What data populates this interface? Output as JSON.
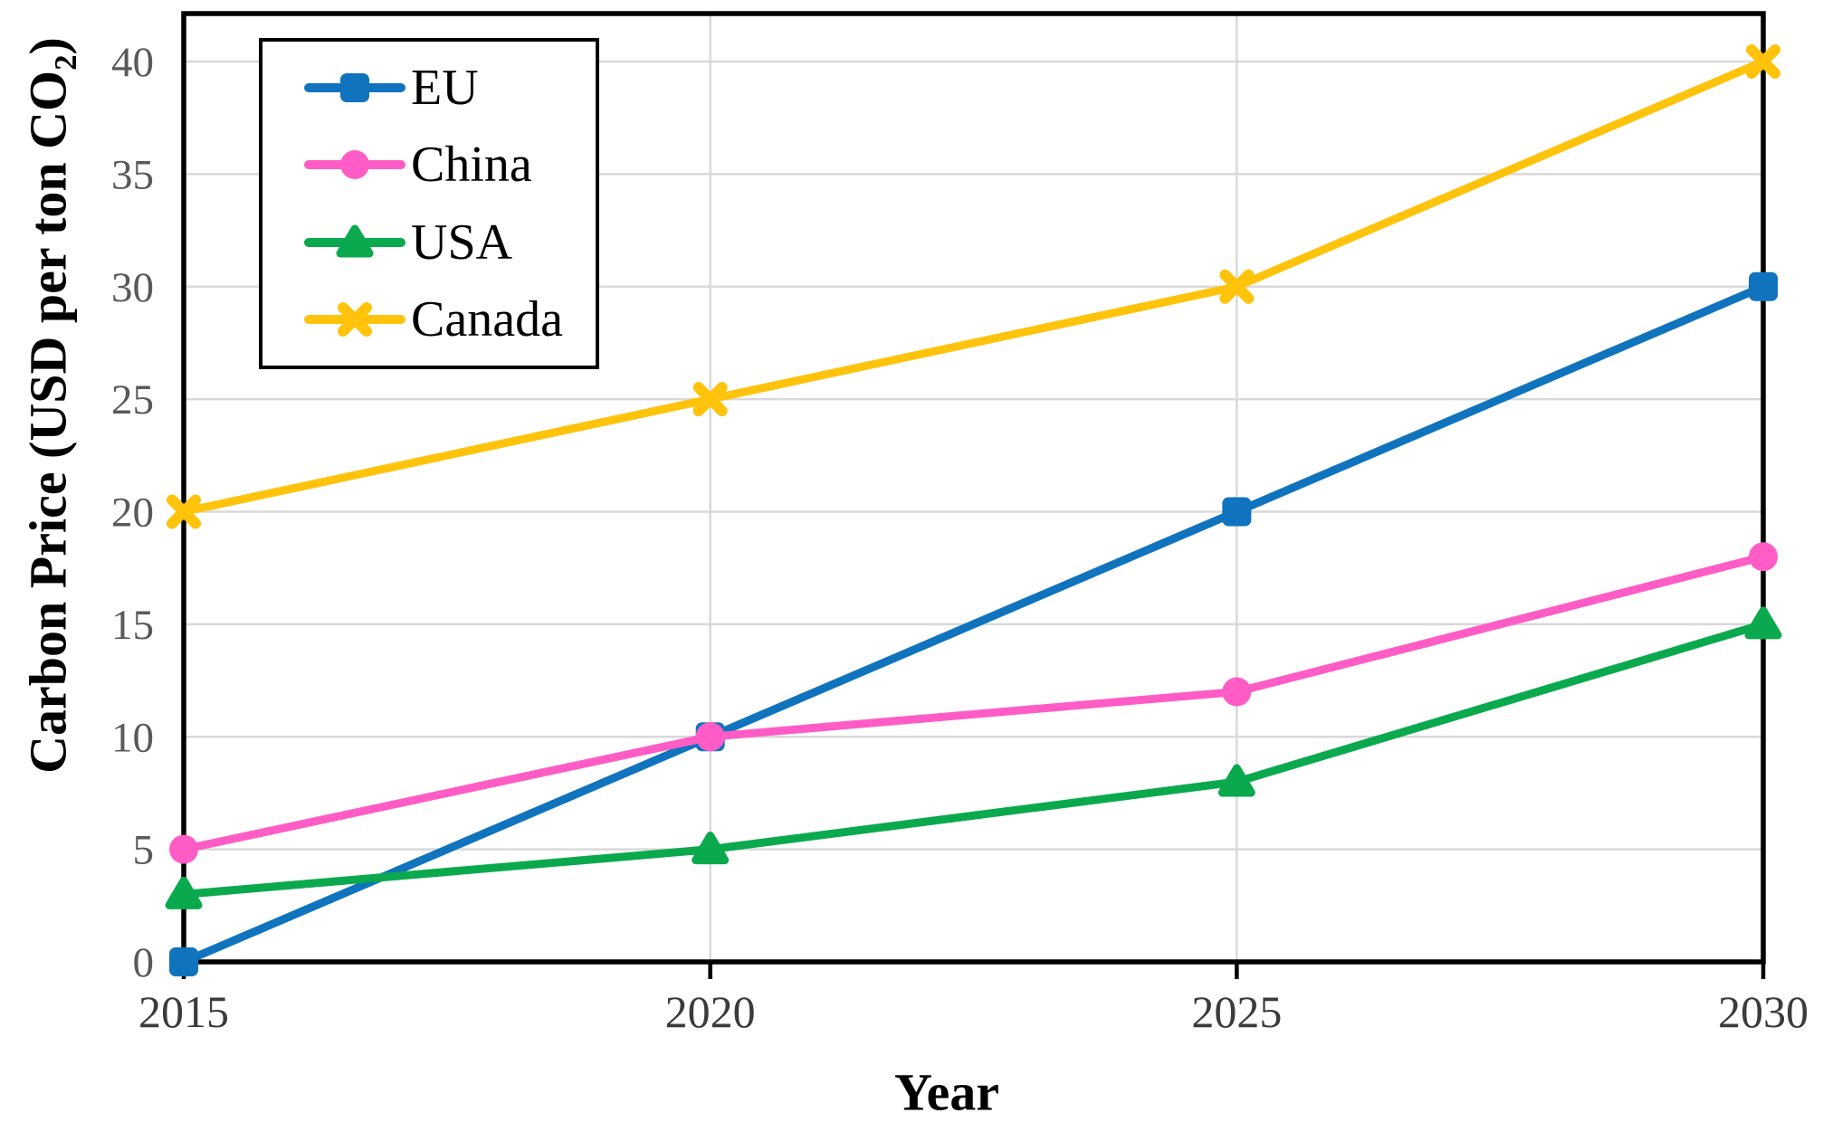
{
  "chart_data": {
    "type": "line",
    "title": "",
    "xlabel": "Year",
    "ylabel": "Carbon Price (USD per ton CO₂)",
    "x_labels": [
      "2015",
      "2020",
      "2025",
      "2030"
    ],
    "y_ticks": [
      0,
      5,
      10,
      15,
      20,
      25,
      30,
      35,
      40
    ],
    "ylim": [
      0,
      40
    ],
    "grid": "horizontal and vertical light-gray gridlines",
    "legend_position": "top-left inside plot, boxed",
    "series": [
      {
        "name": "EU",
        "marker": "square",
        "color": "#1073BE",
        "values": [
          0,
          10,
          20,
          30
        ]
      },
      {
        "name": "China",
        "marker": "circle",
        "color": "#FF5CC6",
        "values": [
          5,
          10,
          12,
          18
        ]
      },
      {
        "name": "USA",
        "marker": "triangle",
        "color": "#0BA94E",
        "values": [
          3,
          5,
          8,
          15
        ]
      },
      {
        "name": "Canada",
        "marker": "x",
        "color": "#FFC30B",
        "values": [
          20,
          25,
          30,
          40
        ]
      }
    ]
  },
  "style": {
    "grid_color": "#D9D9D9",
    "axis_color": "#000000",
    "y_tick_color": "#595959",
    "x_tick_color": "#3B3B3B"
  }
}
